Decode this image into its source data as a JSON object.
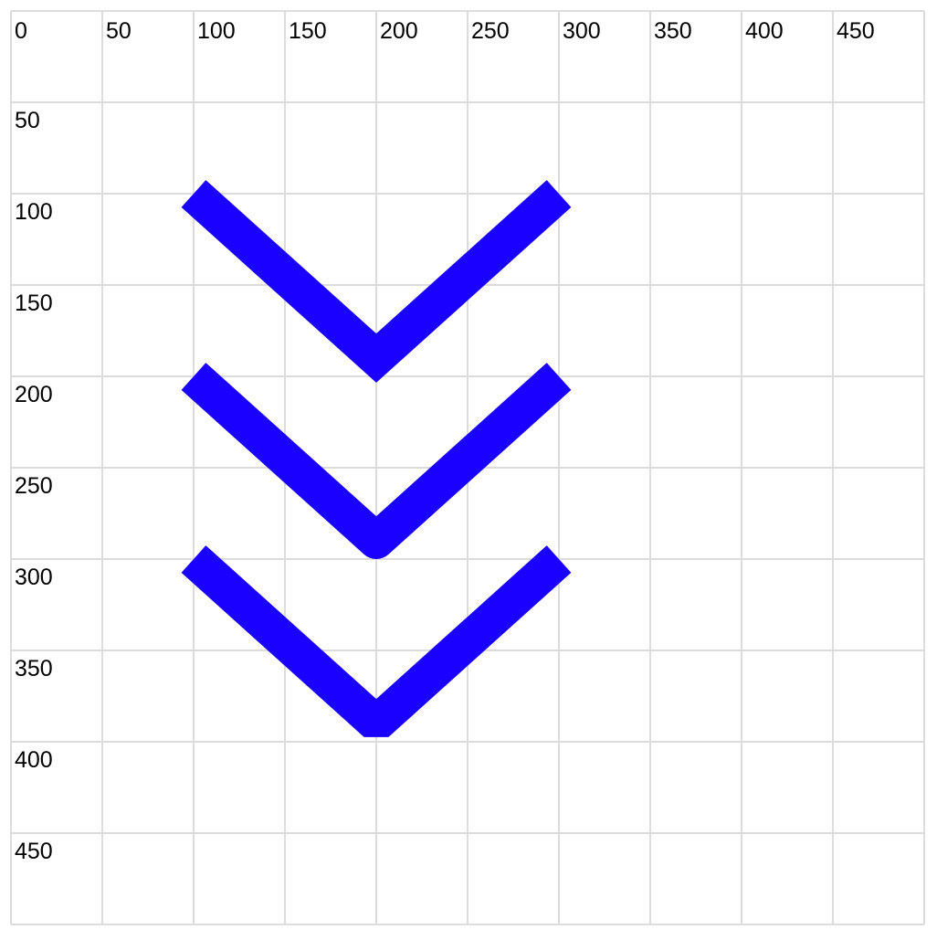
{
  "grid": {
    "line_color": "#dcdcdc",
    "x_ticks": [
      "0",
      "50",
      "100",
      "150",
      "200",
      "250",
      "300",
      "350",
      "400",
      "450"
    ],
    "y_ticks": [
      "50",
      "100",
      "150",
      "200",
      "250",
      "300",
      "350",
      "400",
      "450"
    ]
  },
  "chevrons": {
    "color": "#1a00ff",
    "items": [
      {
        "name": "chevron-top",
        "stroke_linejoin": "miter",
        "points": [
          [
            100,
            100
          ],
          [
            200,
            190
          ],
          [
            300,
            100
          ]
        ]
      },
      {
        "name": "chevron-middle",
        "stroke_linejoin": "round",
        "points": [
          [
            100,
            200
          ],
          [
            200,
            290
          ],
          [
            300,
            200
          ]
        ]
      },
      {
        "name": "chevron-bottom",
        "stroke_linejoin": "bevel",
        "points": [
          [
            100,
            300
          ],
          [
            200,
            390
          ],
          [
            300,
            300
          ]
        ]
      }
    ]
  }
}
